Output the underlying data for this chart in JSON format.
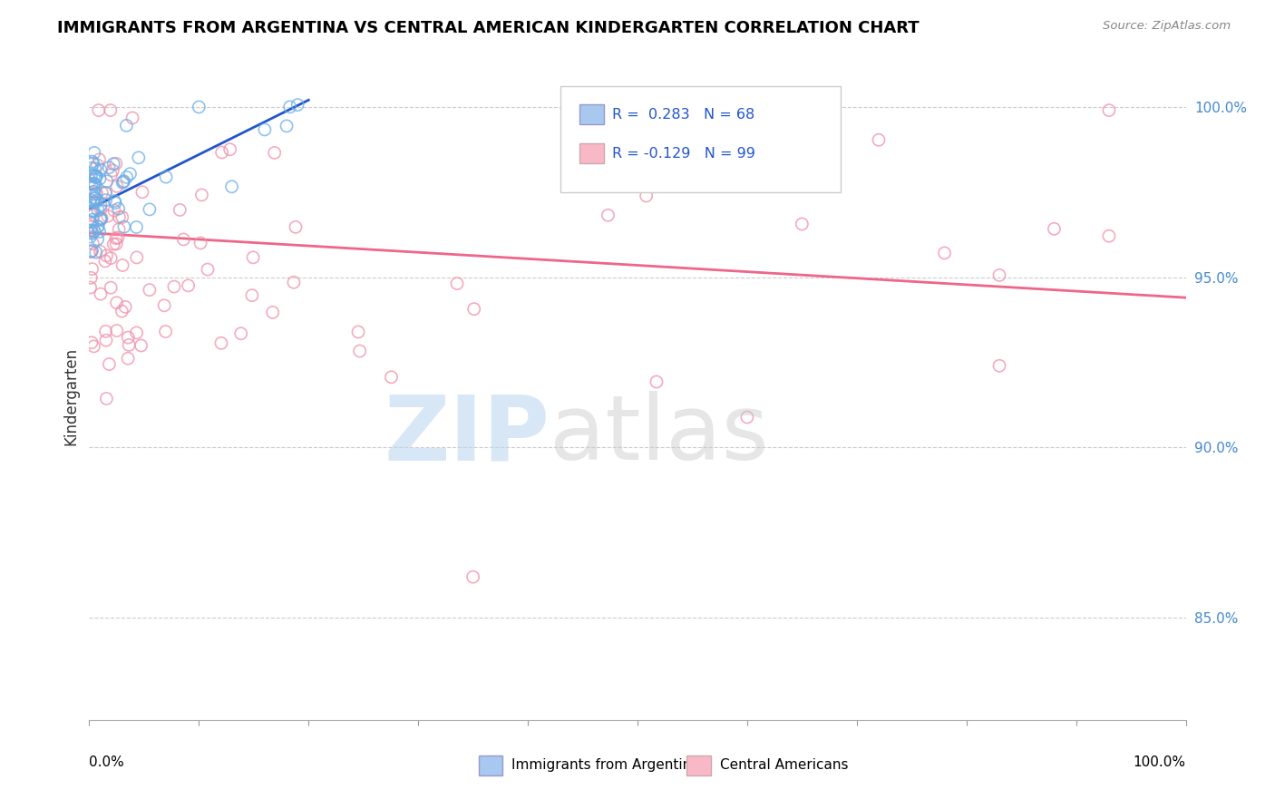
{
  "title": "IMMIGRANTS FROM ARGENTINA VS CENTRAL AMERICAN KINDERGARTEN CORRELATION CHART",
  "source": "Source: ZipAtlas.com",
  "ylabel": "Kindergarten",
  "ytick_values": [
    0.85,
    0.9,
    0.95,
    1.0
  ],
  "ytick_labels": [
    "85.0%",
    "90.0%",
    "95.0%",
    "100.0%"
  ],
  "legend_color1": "#a8c8f0",
  "legend_color2": "#f8b8c8",
  "dot_color_argentina": "#6aaee8",
  "dot_color_central": "#f090a8",
  "trend_color_argentina": "#2255cc",
  "trend_color_central": "#ee6688",
  "legend1_label": "Immigrants from Argentina",
  "legend2_label": "Central Americans",
  "xlim": [
    0.0,
    1.0
  ],
  "ylim": [
    0.82,
    1.01
  ],
  "arg_trend_x0": 0.0,
  "arg_trend_y0": 0.97,
  "arg_trend_x1": 0.2,
  "arg_trend_y1": 1.002,
  "cen_trend_x0": 0.0,
  "cen_trend_y0": 0.963,
  "cen_trend_x1": 1.0,
  "cen_trend_y1": 0.944,
  "watermark_zip_color": "#b8d4ee",
  "watermark_atlas_color": "#c8c8c8"
}
